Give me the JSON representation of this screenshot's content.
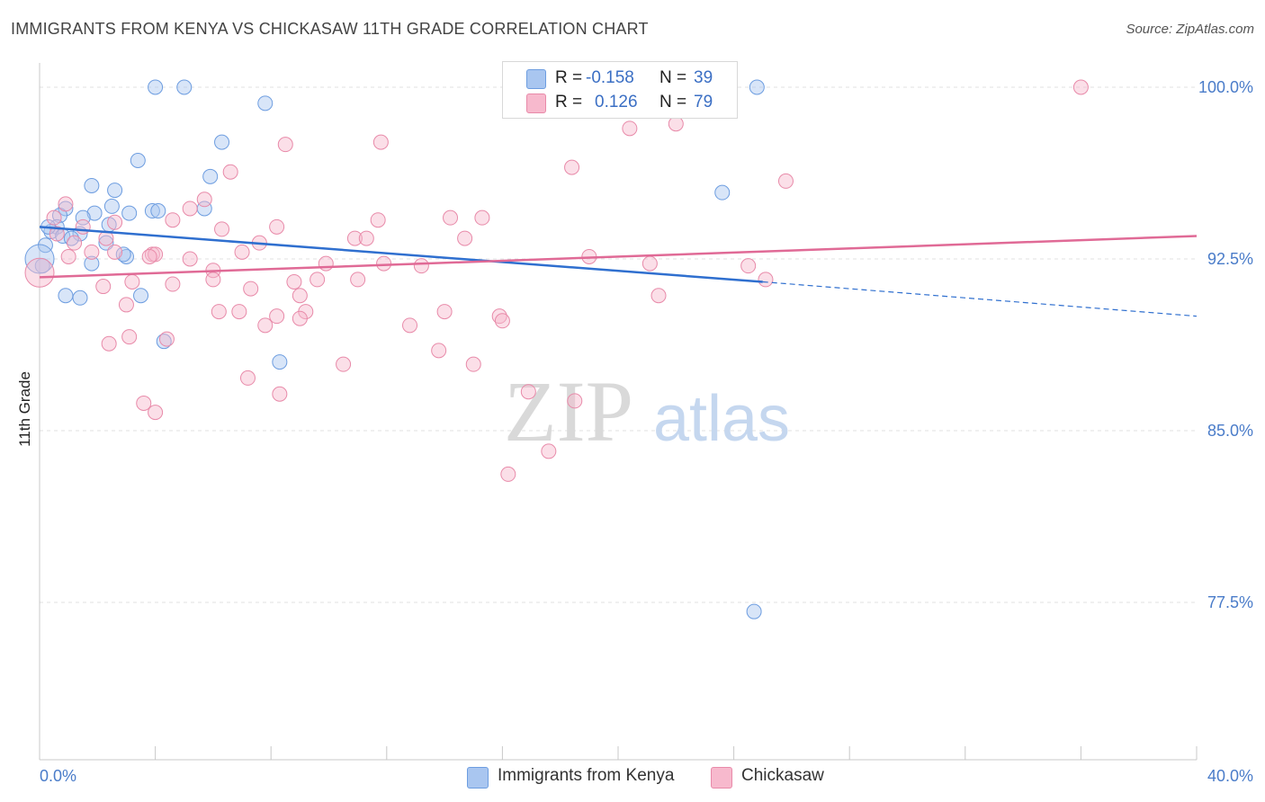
{
  "title": "IMMIGRANTS FROM KENYA VS CHICKASAW 11TH GRADE CORRELATION CHART",
  "source": "Source: ZipAtlas.com",
  "watermark": {
    "zip": "ZIP",
    "atlas": "atlas"
  },
  "legend_top": {
    "rows": [
      {
        "r_label": "R =",
        "r_value": "-0.158",
        "n_label": "N =",
        "n_value": "39",
        "color": "#a9c6f0",
        "border": "#6d9de0"
      },
      {
        "r_label": "R =",
        "r_value": "0.126",
        "n_label": "N =",
        "n_value": "79",
        "color": "#f7b9cd",
        "border": "#e88aa9"
      }
    ]
  },
  "legend_bottom": [
    {
      "label": "Immigrants from Kenya",
      "color": "#a9c6f0",
      "border": "#6d9de0"
    },
    {
      "label": "Chickasaw",
      "color": "#f7b9cd",
      "border": "#e88aa9"
    }
  ],
  "chart_data": {
    "type": "scatter",
    "title": "IMMIGRANTS FROM KENYA VS CHICKASAW 11TH GRADE CORRELATION CHART",
    "xlabel": "",
    "ylabel": "11th Grade",
    "xlim": [
      0.0,
      40.0
    ],
    "ylim": [
      70.0,
      101.0
    ],
    "x_tick_labels": [
      "0.0%",
      "40.0%"
    ],
    "y_ticks": [
      77.5,
      85.0,
      92.5,
      100.0
    ],
    "y_tick_labels": [
      "77.5%",
      "85.0%",
      "92.5%",
      "100.0%"
    ],
    "grid": true,
    "series": [
      {
        "name": "Immigrants from Kenya",
        "color": "#6d9de0",
        "fill": "#a9c6f0",
        "trend": {
          "x": [
            0.0,
            25.0
          ],
          "y": [
            93.9,
            91.5
          ],
          "dashed_to": [
            40.0,
            90.0
          ]
        },
        "points": [
          [
            4.0,
            100.0
          ],
          [
            5.0,
            100.0
          ],
          [
            24.8,
            100.0
          ],
          [
            7.8,
            99.3
          ],
          [
            6.3,
            97.6
          ],
          [
            3.4,
            96.8
          ],
          [
            5.9,
            96.1
          ],
          [
            1.8,
            95.7
          ],
          [
            2.6,
            95.5
          ],
          [
            23.6,
            95.4
          ],
          [
            2.5,
            94.8
          ],
          [
            5.7,
            94.7
          ],
          [
            0.9,
            94.7
          ],
          [
            1.9,
            94.5
          ],
          [
            3.1,
            94.5
          ],
          [
            3.9,
            94.6
          ],
          [
            4.1,
            94.6
          ],
          [
            0.7,
            94.4
          ],
          [
            1.5,
            94.3
          ],
          [
            2.4,
            94.0
          ],
          [
            0.6,
            93.9
          ],
          [
            0.4,
            93.7
          ],
          [
            1.4,
            93.6
          ],
          [
            0.8,
            93.5
          ],
          [
            1.1,
            93.4
          ],
          [
            0.2,
            93.1
          ],
          [
            2.3,
            93.2
          ],
          [
            3.0,
            92.6
          ],
          [
            2.9,
            92.7
          ],
          [
            1.8,
            92.3
          ],
          [
            0.1,
            92.2
          ],
          [
            0.3,
            93.9
          ],
          [
            0.0,
            92.5
          ],
          [
            0.9,
            90.9
          ],
          [
            1.4,
            90.8
          ],
          [
            3.5,
            90.9
          ],
          [
            4.3,
            88.9
          ],
          [
            8.3,
            88.0
          ],
          [
            24.7,
            77.1
          ]
        ]
      },
      {
        "name": "Chickasaw",
        "color": "#e88aa9",
        "fill": "#f7b9cd",
        "trend": {
          "x": [
            0.0,
            40.0
          ],
          "y": [
            91.7,
            93.5
          ]
        },
        "points": [
          [
            36.0,
            100.0
          ],
          [
            20.4,
            98.2
          ],
          [
            22.0,
            98.4
          ],
          [
            11.8,
            97.6
          ],
          [
            8.5,
            97.5
          ],
          [
            18.4,
            96.5
          ],
          [
            6.6,
            96.3
          ],
          [
            25.8,
            95.9
          ],
          [
            5.7,
            95.1
          ],
          [
            5.2,
            94.7
          ],
          [
            0.9,
            94.9
          ],
          [
            14.2,
            94.3
          ],
          [
            15.3,
            94.3
          ],
          [
            11.7,
            94.2
          ],
          [
            4.6,
            94.2
          ],
          [
            2.6,
            94.1
          ],
          [
            1.5,
            93.9
          ],
          [
            8.2,
            93.9
          ],
          [
            6.3,
            93.8
          ],
          [
            2.3,
            93.4
          ],
          [
            0.6,
            93.6
          ],
          [
            10.9,
            93.4
          ],
          [
            11.3,
            93.4
          ],
          [
            14.7,
            93.4
          ],
          [
            7.6,
            93.2
          ],
          [
            1.8,
            92.8
          ],
          [
            7.0,
            92.8
          ],
          [
            2.6,
            92.8
          ],
          [
            3.9,
            92.7
          ],
          [
            4.0,
            92.7
          ],
          [
            9.9,
            92.3
          ],
          [
            11.9,
            92.3
          ],
          [
            1.0,
            92.6
          ],
          [
            5.2,
            92.5
          ],
          [
            6.0,
            92.0
          ],
          [
            13.2,
            92.2
          ],
          [
            21.1,
            92.3
          ],
          [
            25.1,
            91.6
          ],
          [
            6.0,
            91.6
          ],
          [
            8.8,
            91.5
          ],
          [
            9.6,
            91.6
          ],
          [
            11.0,
            91.6
          ],
          [
            3.2,
            91.5
          ],
          [
            4.6,
            91.4
          ],
          [
            7.3,
            91.2
          ],
          [
            2.2,
            91.3
          ],
          [
            0.0,
            91.9
          ],
          [
            9.0,
            90.9
          ],
          [
            21.4,
            90.9
          ],
          [
            3.0,
            90.5
          ],
          [
            6.2,
            90.2
          ],
          [
            6.9,
            90.2
          ],
          [
            8.2,
            90.0
          ],
          [
            9.2,
            90.2
          ],
          [
            14.0,
            90.2
          ],
          [
            15.9,
            90.0
          ],
          [
            16.0,
            89.8
          ],
          [
            7.8,
            89.6
          ],
          [
            12.8,
            89.6
          ],
          [
            9.0,
            89.9
          ],
          [
            3.1,
            89.1
          ],
          [
            4.4,
            89.0
          ],
          [
            13.8,
            88.5
          ],
          [
            2.4,
            88.8
          ],
          [
            15.0,
            87.9
          ],
          [
            10.5,
            87.9
          ],
          [
            7.2,
            87.3
          ],
          [
            16.9,
            86.7
          ],
          [
            8.3,
            86.6
          ],
          [
            3.6,
            86.2
          ],
          [
            4.0,
            85.8
          ],
          [
            18.5,
            86.3
          ],
          [
            17.6,
            84.1
          ],
          [
            16.2,
            83.1
          ],
          [
            24.5,
            92.2
          ],
          [
            19.0,
            92.6
          ],
          [
            0.5,
            94.3
          ],
          [
            1.2,
            93.2
          ],
          [
            3.8,
            92.6
          ]
        ]
      }
    ],
    "r_values": [
      "-0.158",
      "0.126"
    ],
    "n_values": [
      "39",
      "79"
    ]
  }
}
